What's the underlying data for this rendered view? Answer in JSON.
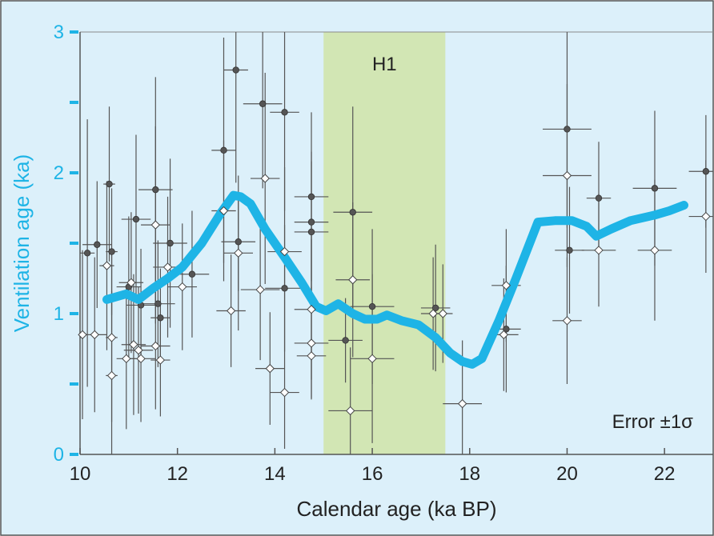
{
  "chart_data": {
    "type": "scatter",
    "title": "",
    "xlabel": "Calendar age (ka BP)",
    "ylabel": "Ventilation age (ka)",
    "xlim": [
      10,
      23
    ],
    "ylim": [
      0,
      3
    ],
    "x_ticks": [
      "10",
      "12",
      "14",
      "16",
      "18",
      "20",
      "22"
    ],
    "y_ticks": [
      "0",
      "1",
      "2",
      "3"
    ],
    "grid": false,
    "annotations": {
      "band_label": "H1",
      "error_label": "Error ±1σ"
    },
    "band": {
      "x_start": 15.0,
      "x_end": 17.5
    },
    "colors": {
      "background": "#dcf0fa",
      "band": "#d2e6b4",
      "curve": "#1eb4e6",
      "axis_accent": "#1eb4e6",
      "points": "#555555"
    },
    "series": [
      {
        "marker": "filled-circle",
        "points": [
          {
            "x": 10.15,
            "y": 1.43,
            "xe": 0.15,
            "ye": 0.95
          },
          {
            "x": 10.35,
            "y": 1.49,
            "xe": 0.3,
            "ye": 0.45
          },
          {
            "x": 10.6,
            "y": 1.92,
            "xe": 0.12,
            "ye": 0.55
          },
          {
            "x": 10.65,
            "y": 1.44,
            "xe": 0.12,
            "ye": 0.45
          },
          {
            "x": 11.0,
            "y": 1.19,
            "xe": 0.25,
            "ye": 0.5
          },
          {
            "x": 11.15,
            "y": 1.67,
            "xe": 0.3,
            "ye": 0.6
          },
          {
            "x": 11.25,
            "y": 1.06,
            "xe": 0.3,
            "ye": 0.4
          },
          {
            "x": 11.55,
            "y": 1.88,
            "xe": 0.35,
            "ye": 0.8
          },
          {
            "x": 11.6,
            "y": 1.07,
            "xe": 0.35,
            "ye": 0.45
          },
          {
            "x": 11.65,
            "y": 0.97,
            "xe": 0.2,
            "ye": 0.35
          },
          {
            "x": 11.85,
            "y": 1.5,
            "xe": 0.35,
            "ye": 0.6
          },
          {
            "x": 12.3,
            "y": 1.28,
            "xe": 0.35,
            "ye": 0.45
          },
          {
            "x": 12.95,
            "y": 2.16,
            "xe": 0.25,
            "ye": 0.8
          },
          {
            "x": 13.2,
            "y": 2.73,
            "xe": 0.25,
            "ye": 0.8
          },
          {
            "x": 13.25,
            "y": 1.51,
            "xe": 0.35,
            "ye": 0.35
          },
          {
            "x": 13.75,
            "y": 2.49,
            "xe": 0.4,
            "ye": 0.6
          },
          {
            "x": 14.2,
            "y": 2.43,
            "xe": 0.3,
            "ye": 0.7
          },
          {
            "x": 14.2,
            "y": 1.18,
            "xe": 0.4,
            "ye": 0.45
          },
          {
            "x": 14.75,
            "y": 1.83,
            "xe": 0.35,
            "ye": 0.6
          },
          {
            "x": 14.75,
            "y": 1.65,
            "xe": 0.35,
            "ye": 0.5
          },
          {
            "x": 14.75,
            "y": 1.58,
            "xe": 0.35,
            "ye": 0.5
          },
          {
            "x": 15.45,
            "y": 0.81,
            "xe": 0.35,
            "ye": 0.3
          },
          {
            "x": 15.6,
            "y": 1.72,
            "xe": 0.4,
            "ye": 0.75
          },
          {
            "x": 16.0,
            "y": 1.05,
            "xe": 0.45,
            "ye": 0.55
          },
          {
            "x": 17.3,
            "y": 1.04,
            "xe": 0.3,
            "ye": 0.45
          },
          {
            "x": 18.75,
            "y": 0.89,
            "xe": 0.3,
            "ye": 0.45
          },
          {
            "x": 20.0,
            "y": 2.31,
            "xe": 0.5,
            "ye": 0.7
          },
          {
            "x": 20.05,
            "y": 1.45,
            "xe": 0.3,
            "ye": 0.45
          },
          {
            "x": 20.65,
            "y": 1.82,
            "xe": 0.25,
            "ye": 0.4
          },
          {
            "x": 21.8,
            "y": 1.89,
            "xe": 0.45,
            "ye": 0.55
          },
          {
            "x": 22.85,
            "y": 2.01,
            "xe": 0.35,
            "ye": 0.4
          }
        ]
      },
      {
        "marker": "open-diamond",
        "points": [
          {
            "x": 10.05,
            "y": 0.85,
            "xe": 0.1,
            "ye": 0.6
          },
          {
            "x": 10.3,
            "y": 0.85,
            "xe": 0.25,
            "ye": 0.55
          },
          {
            "x": 10.55,
            "y": 1.34,
            "xe": 0.15,
            "ye": 0.6
          },
          {
            "x": 10.65,
            "y": 0.56,
            "xe": 0.12,
            "ye": 0.6
          },
          {
            "x": 10.65,
            "y": 0.83,
            "xe": 0.12,
            "ye": 0.6
          },
          {
            "x": 10.95,
            "y": 0.68,
            "xe": 0.2,
            "ye": 0.5
          },
          {
            "x": 11.05,
            "y": 1.22,
            "xe": 0.25,
            "ye": 0.5
          },
          {
            "x": 11.1,
            "y": 0.78,
            "xe": 0.25,
            "ye": 0.5
          },
          {
            "x": 11.2,
            "y": 0.74,
            "xe": 0.3,
            "ye": 0.45
          },
          {
            "x": 11.25,
            "y": 0.68,
            "xe": 0.3,
            "ye": 0.45
          },
          {
            "x": 11.55,
            "y": 1.63,
            "xe": 0.3,
            "ye": 0.7
          },
          {
            "x": 11.55,
            "y": 0.77,
            "xe": 0.3,
            "ye": 0.45
          },
          {
            "x": 11.65,
            "y": 0.67,
            "xe": 0.2,
            "ye": 0.4
          },
          {
            "x": 11.8,
            "y": 1.33,
            "xe": 0.3,
            "ye": 0.5
          },
          {
            "x": 12.1,
            "y": 1.19,
            "xe": 0.3,
            "ye": 0.45
          },
          {
            "x": 12.95,
            "y": 1.73,
            "xe": 0.25,
            "ye": 0.5
          },
          {
            "x": 13.1,
            "y": 1.02,
            "xe": 0.3,
            "ye": 0.4
          },
          {
            "x": 13.25,
            "y": 1.43,
            "xe": 0.3,
            "ye": 0.55
          },
          {
            "x": 13.8,
            "y": 1.96,
            "xe": 0.3,
            "ye": 0.75
          },
          {
            "x": 13.7,
            "y": 1.17,
            "xe": 0.4,
            "ye": 0.5
          },
          {
            "x": 13.9,
            "y": 0.61,
            "xe": 0.3,
            "ye": 0.4
          },
          {
            "x": 14.2,
            "y": 1.44,
            "xe": 0.35,
            "ye": 0.6
          },
          {
            "x": 14.2,
            "y": 0.44,
            "xe": 0.3,
            "ye": 0.4
          },
          {
            "x": 14.75,
            "y": 1.03,
            "xe": 0.35,
            "ye": 0.5
          },
          {
            "x": 14.75,
            "y": 0.79,
            "xe": 0.35,
            "ye": 0.4
          },
          {
            "x": 14.75,
            "y": 0.7,
            "xe": 0.3,
            "ye": 0.3
          },
          {
            "x": 15.55,
            "y": 0.31,
            "xe": 0.45,
            "ye": 0.45
          },
          {
            "x": 15.6,
            "y": 1.24,
            "xe": 0.35,
            "ye": 0.55
          },
          {
            "x": 16.0,
            "y": 0.68,
            "xe": 0.45,
            "ye": 0.6
          },
          {
            "x": 17.25,
            "y": 1.0,
            "xe": 0.25,
            "ye": 0.4
          },
          {
            "x": 17.45,
            "y": 1.0,
            "xe": 0.2,
            "ye": 0.35
          },
          {
            "x": 17.85,
            "y": 0.36,
            "xe": 0.4,
            "ye": 0.45
          },
          {
            "x": 18.7,
            "y": 0.85,
            "xe": 0.3,
            "ye": 0.4
          },
          {
            "x": 18.75,
            "y": 1.2,
            "xe": 0.3,
            "ye": 0.4
          },
          {
            "x": 20.0,
            "y": 1.98,
            "xe": 0.5,
            "ye": 0.65
          },
          {
            "x": 20.0,
            "y": 0.95,
            "xe": 0.3,
            "ye": 0.45
          },
          {
            "x": 20.65,
            "y": 1.45,
            "xe": 0.35,
            "ye": 0.4
          },
          {
            "x": 21.8,
            "y": 1.45,
            "xe": 0.35,
            "ye": 0.5
          },
          {
            "x": 22.85,
            "y": 1.69,
            "xe": 0.35,
            "ye": 0.4
          }
        ]
      },
      {
        "type": "line",
        "x": [
          10.55,
          10.75,
          10.95,
          11.2,
          11.5,
          11.8,
          12.1,
          12.5,
          12.9,
          13.15,
          13.3,
          13.5,
          13.8,
          14.2,
          14.55,
          14.85,
          15.05,
          15.3,
          15.6,
          15.85,
          16.1,
          16.3,
          16.6,
          16.95,
          17.3,
          17.6,
          17.85,
          18.05,
          18.25,
          18.6,
          18.95,
          19.4,
          19.75,
          20.1,
          20.4,
          20.6,
          20.9,
          21.3,
          21.8,
          22.1,
          22.4
        ],
        "y": [
          1.1,
          1.12,
          1.14,
          1.1,
          1.18,
          1.25,
          1.33,
          1.5,
          1.72,
          1.84,
          1.83,
          1.78,
          1.6,
          1.4,
          1.22,
          1.05,
          1.02,
          1.07,
          1.0,
          0.96,
          0.96,
          0.99,
          0.95,
          0.92,
          0.83,
          0.72,
          0.66,
          0.64,
          0.68,
          0.95,
          1.25,
          1.65,
          1.66,
          1.66,
          1.62,
          1.55,
          1.6,
          1.66,
          1.7,
          1.73,
          1.77
        ]
      }
    ]
  }
}
